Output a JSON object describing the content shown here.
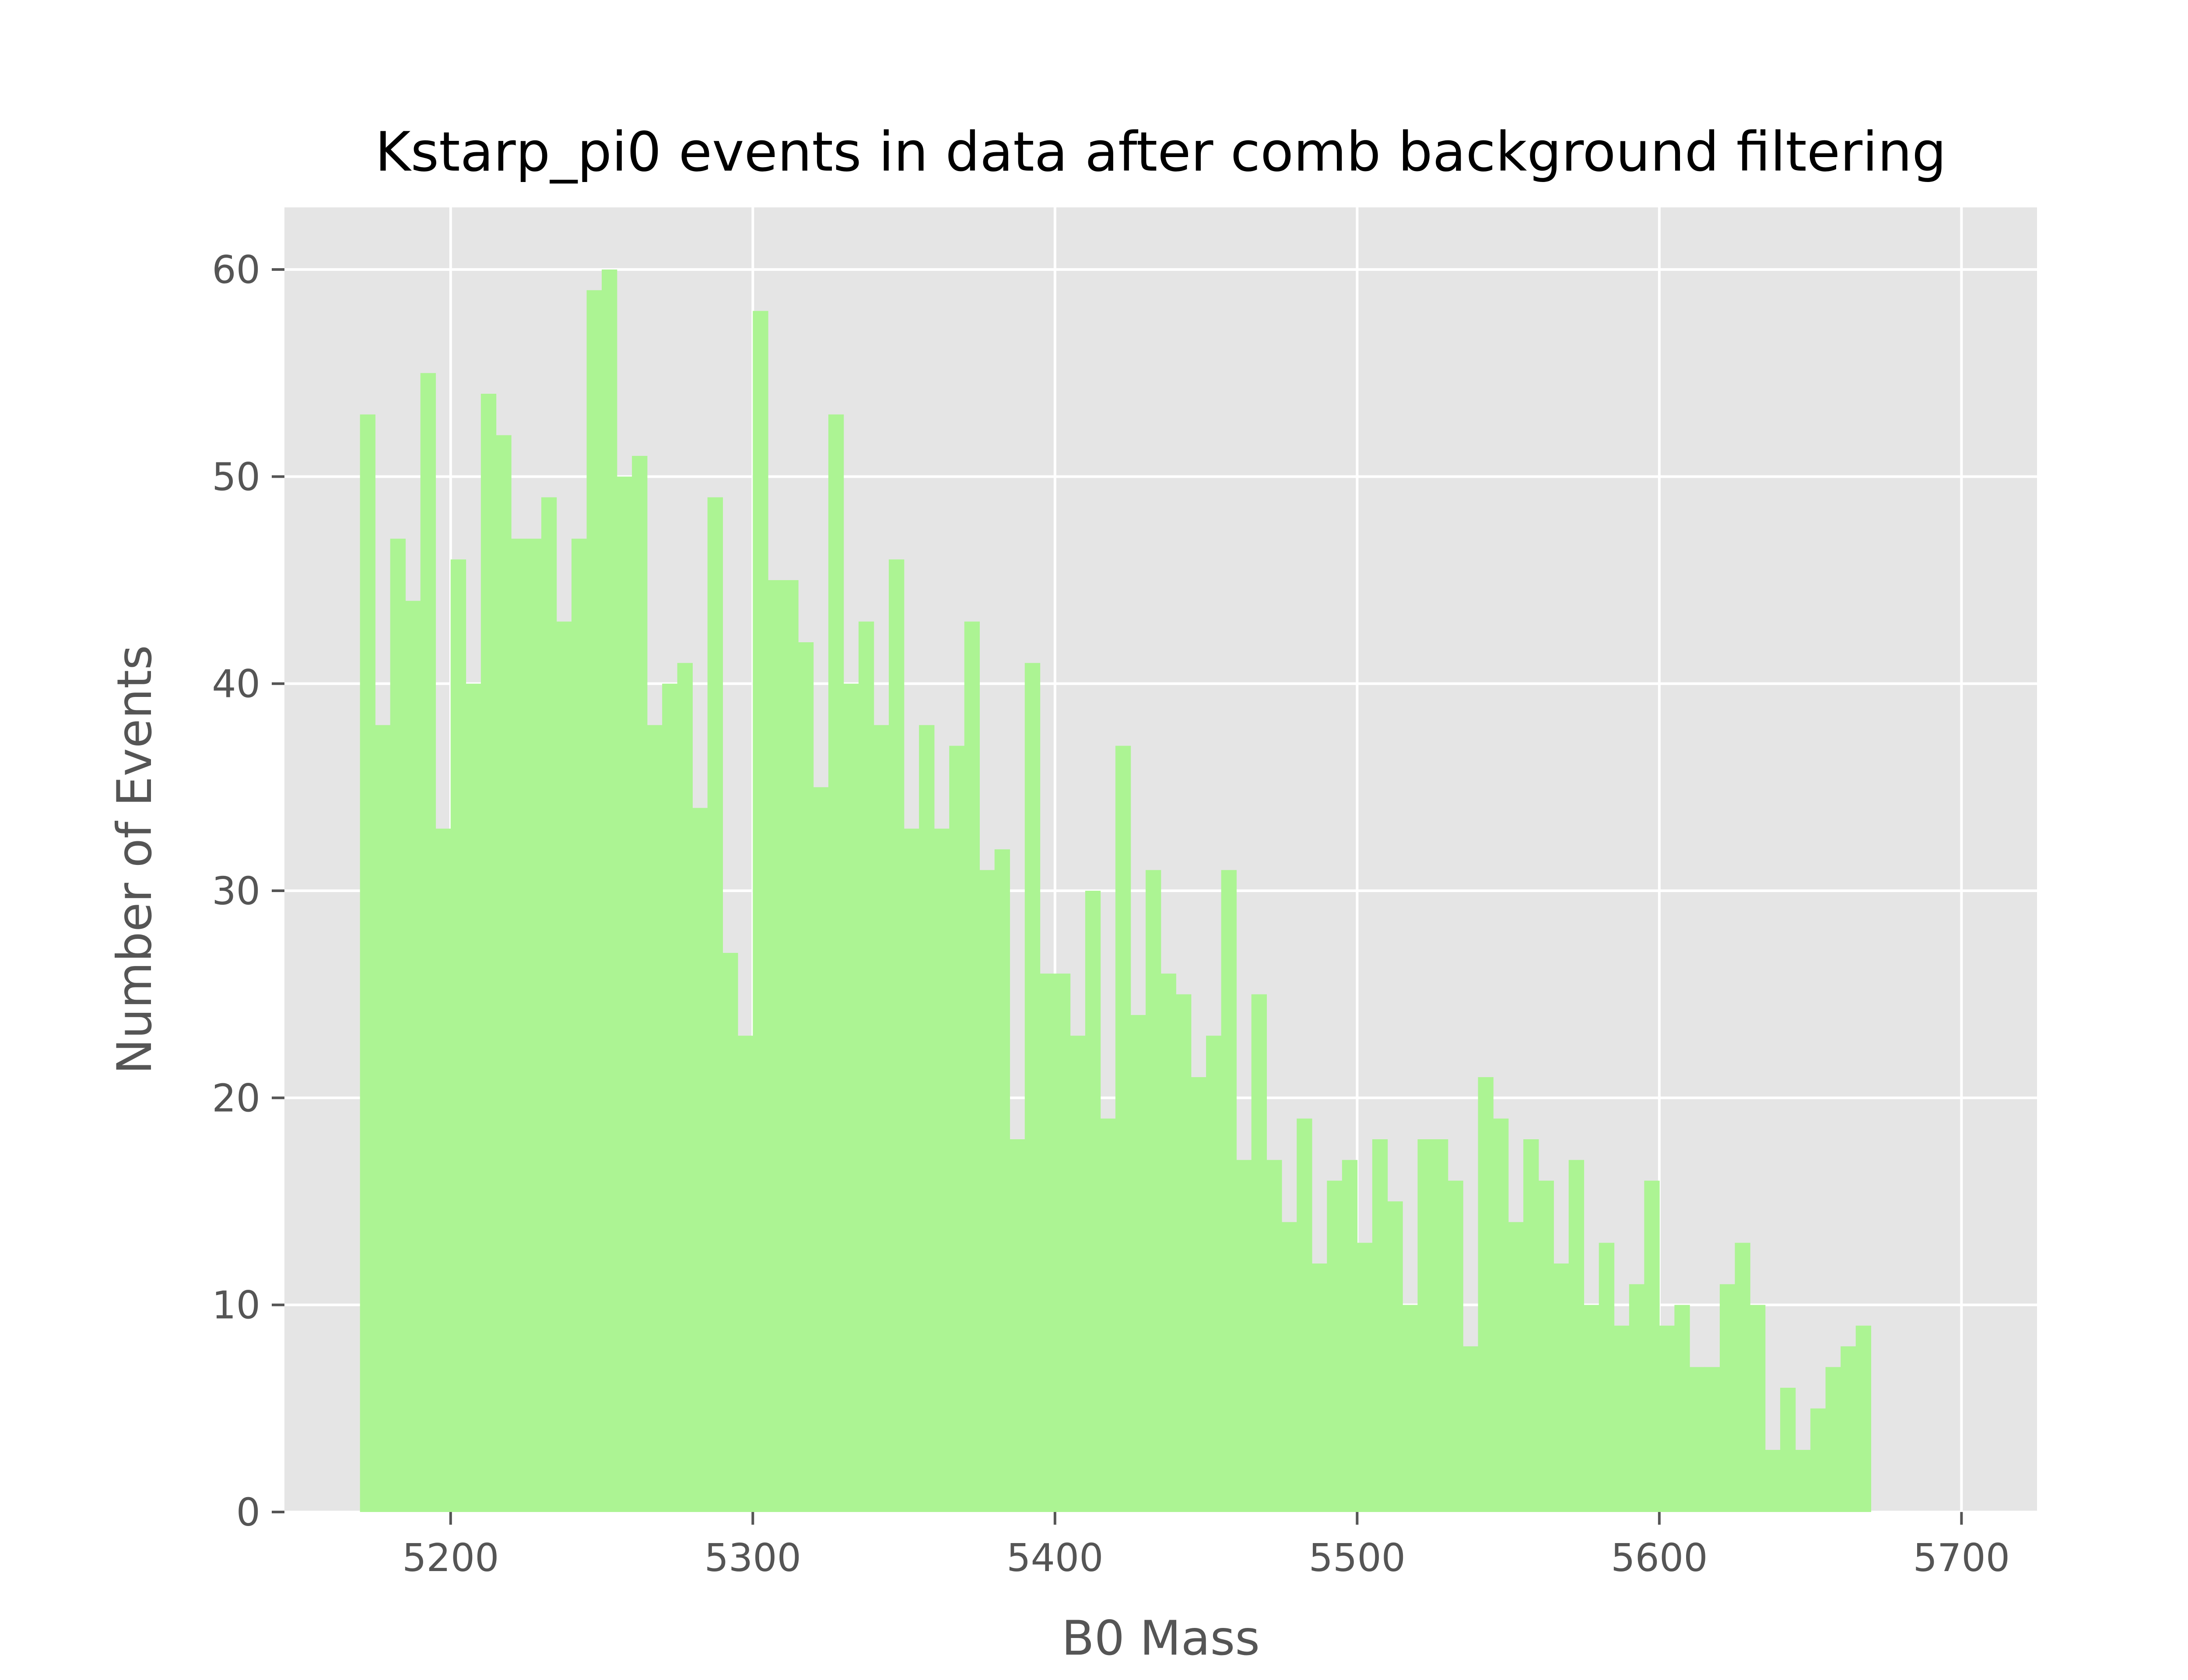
{
  "chart_data": {
    "type": "bar",
    "title": "Kstarp_pi0 events in data after comb background filtering",
    "xlabel": "B0 Mass",
    "ylabel": "Number of Events",
    "xlim": [
      5145,
      5725
    ],
    "ylim": [
      0,
      63
    ],
    "xticks": [
      5200,
      5300,
      5400,
      5500,
      5600,
      5700
    ],
    "yticks": [
      0,
      10,
      20,
      30,
      40,
      50,
      60
    ],
    "grid": true,
    "legend": "none",
    "bin_start": 5170,
    "bin_width": 5,
    "values": [
      53,
      38,
      47,
      44,
      55,
      33,
      46,
      40,
      54,
      52,
      47,
      47,
      49,
      43,
      47,
      59,
      60,
      50,
      51,
      38,
      40,
      41,
      34,
      49,
      27,
      23,
      58,
      45,
      45,
      42,
      35,
      53,
      40,
      43,
      38,
      46,
      33,
      38,
      33,
      37,
      43,
      31,
      32,
      18,
      41,
      26,
      26,
      23,
      30,
      19,
      37,
      24,
      31,
      26,
      25,
      21,
      23,
      31,
      17,
      25,
      17,
      14,
      19,
      12,
      16,
      17,
      13,
      18,
      15,
      10,
      18,
      18,
      16,
      8,
      21,
      19,
      14,
      18,
      16,
      12,
      17,
      10,
      13,
      9,
      11,
      16,
      9,
      10,
      7,
      7,
      11,
      13,
      10,
      3,
      6,
      3,
      5,
      7,
      8,
      9
    ],
    "colors": {
      "bar": "#acf493",
      "background": "#e5e5e5",
      "grid": "#ffffff",
      "text": "#555555",
      "title": "#000000"
    }
  }
}
